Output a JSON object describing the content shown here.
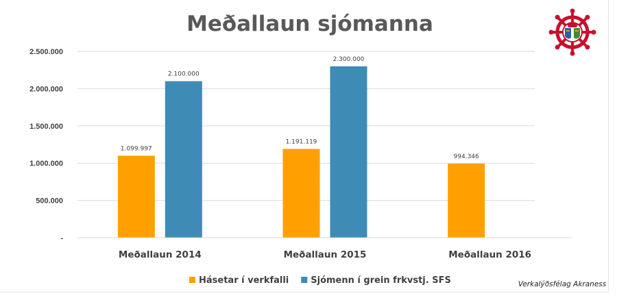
{
  "chart_data": {
    "type": "bar",
    "title": "Meðallaun sjómanna",
    "categories": [
      "Meðallaun 2014",
      "Meðallaun 2015",
      "Meðallaun 2016"
    ],
    "series": [
      {
        "name": "Hásetar í verkfalli",
        "color": "#FFA000",
        "values": [
          1099997,
          1191119,
          994346
        ],
        "labels": [
          "1.099.997",
          "1.191.119",
          "994.346"
        ]
      },
      {
        "name": "Sjómenn í grein frkvstj. SFS",
        "color": "#3E8BB6",
        "values": [
          2100000,
          2300000,
          null
        ],
        "labels": [
          "2.100.000",
          "2.300.000",
          null
        ]
      }
    ],
    "ylim": [
      0,
      2500000
    ],
    "yticks": [
      0,
      500000,
      1000000,
      1500000,
      2000000,
      2500000
    ],
    "ytick_labels": [
      "-",
      "500.000",
      "1.000.000",
      "1.500.000",
      "2.000.000",
      "2.500.000"
    ],
    "grid": true,
    "legend_position": "bottom"
  },
  "footer_text": "Verkalýðsfélag Akraness",
  "logo": {
    "icon": "ship-wheel-logo-icon",
    "wheel_color": "#C8102E"
  }
}
